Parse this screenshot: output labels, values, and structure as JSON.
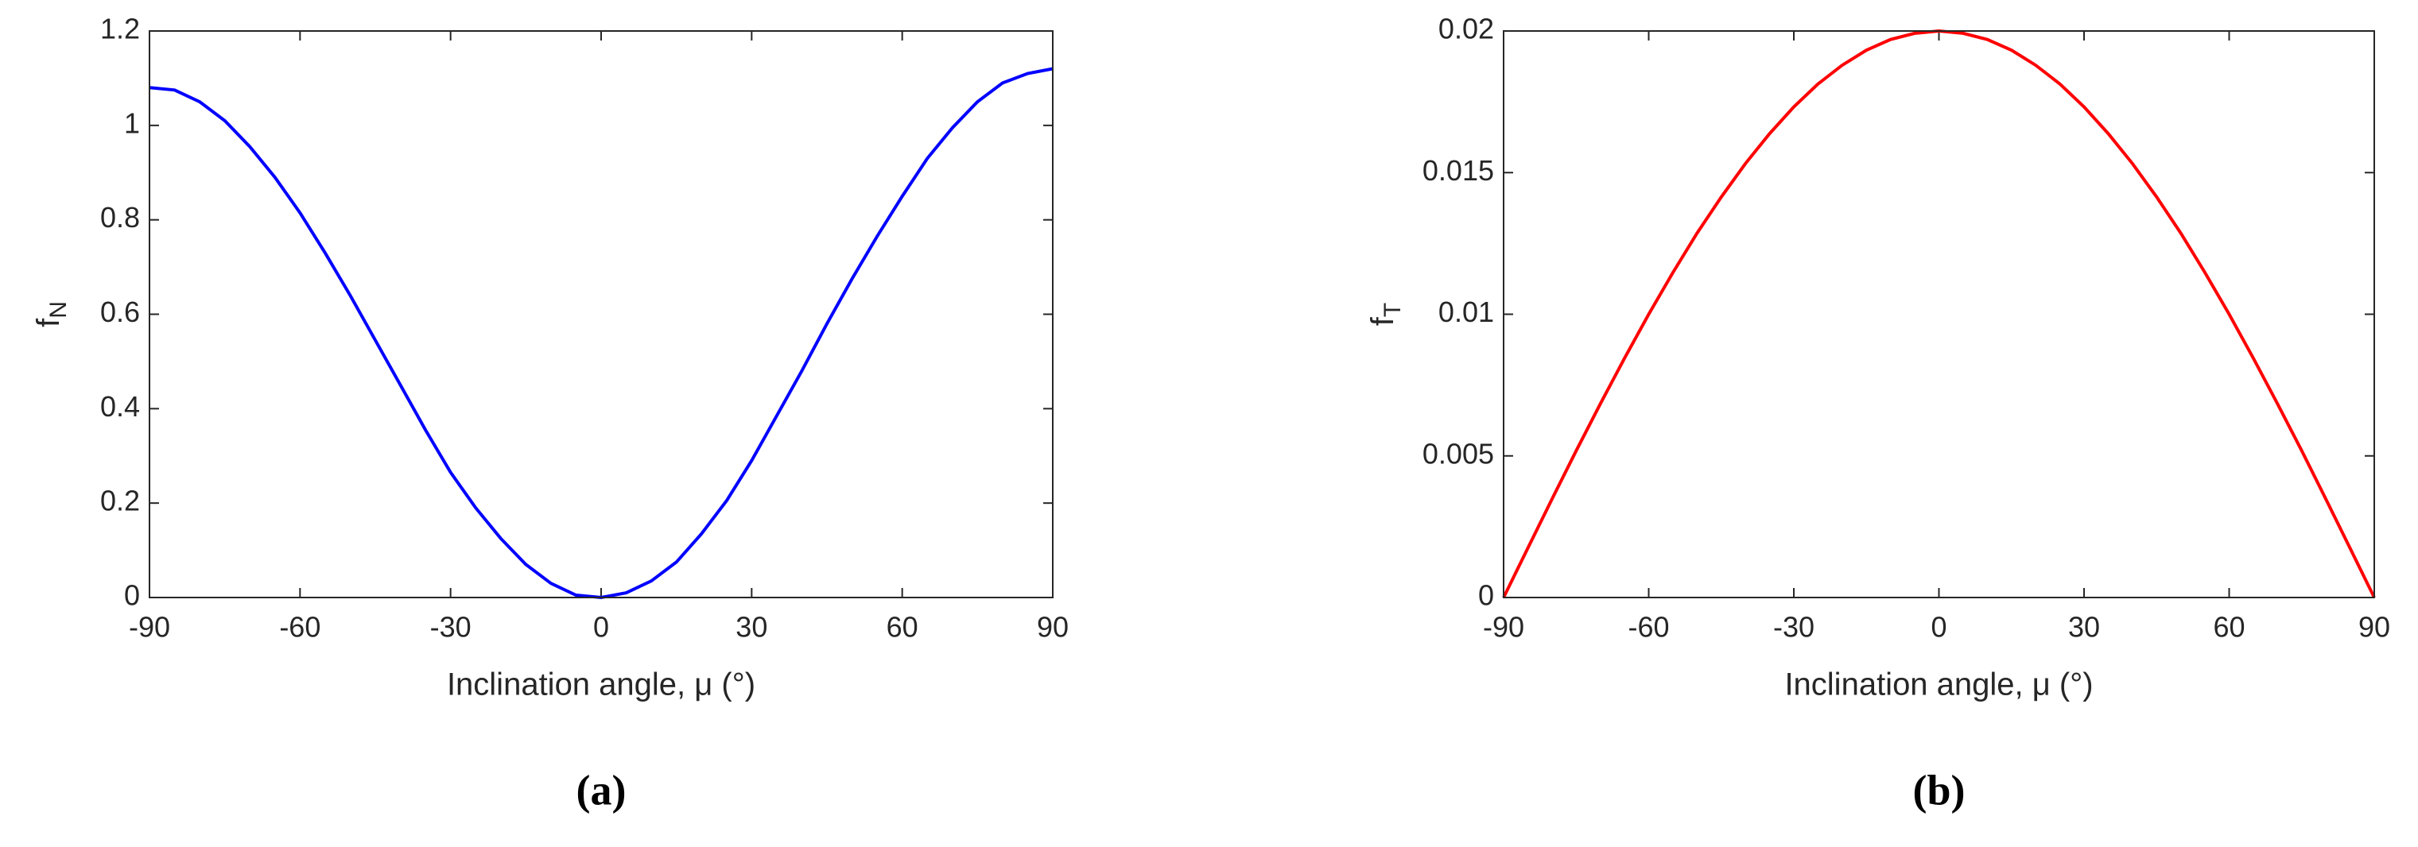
{
  "chart_data": [
    {
      "type": "line",
      "panel_label": "(a)",
      "xlabel": "Inclination angle, μ (°)",
      "ylabel": {
        "base": "f",
        "sub": "N"
      },
      "xlim": [
        -90,
        90
      ],
      "xticks": [
        -90,
        -60,
        -30,
        0,
        30,
        60,
        90
      ],
      "ylim": [
        0,
        1.2
      ],
      "yticks": [
        0,
        0.2,
        0.4,
        0.6,
        0.8,
        1,
        1.2
      ],
      "series": [
        {
          "color": "#0000ff",
          "x": [
            -90,
            -85,
            -80,
            -75,
            -70,
            -65,
            -60,
            -55,
            -50,
            -45,
            -40,
            -35,
            -30,
            -25,
            -20,
            -15,
            -10,
            -5,
            0,
            5,
            10,
            15,
            20,
            25,
            30,
            35,
            40,
            45,
            50,
            55,
            60,
            65,
            70,
            75,
            80,
            85,
            90
          ],
          "values": [
            1.08,
            1.075,
            1.05,
            1.01,
            0.955,
            0.89,
            0.815,
            0.73,
            0.64,
            0.545,
            0.45,
            0.355,
            0.265,
            0.19,
            0.125,
            0.07,
            0.03,
            0.005,
            0,
            0.01,
            0.035,
            0.075,
            0.135,
            0.205,
            0.29,
            0.385,
            0.48,
            0.58,
            0.675,
            0.765,
            0.85,
            0.93,
            0.995,
            1.05,
            1.09,
            1.11,
            1.12
          ]
        }
      ]
    },
    {
      "type": "line",
      "panel_label": "(b)",
      "xlabel": "Inclination angle, μ (°)",
      "ylabel": {
        "base": "f",
        "sub": "T"
      },
      "xlim": [
        -90,
        90
      ],
      "xticks": [
        -90,
        -60,
        -30,
        0,
        30,
        60,
        90
      ],
      "ylim": [
        0,
        0.02
      ],
      "yticks": [
        0,
        0.005,
        0.01,
        0.015,
        0.02
      ],
      "series": [
        {
          "color": "#ff0000",
          "x": [
            -90,
            -85,
            -80,
            -75,
            -70,
            -65,
            -60,
            -55,
            -50,
            -45,
            -40,
            -35,
            -30,
            -25,
            -20,
            -15,
            -10,
            -5,
            0,
            5,
            10,
            15,
            20,
            25,
            30,
            35,
            40,
            45,
            50,
            55,
            60,
            65,
            70,
            75,
            80,
            85,
            90
          ],
          "values": [
            0,
            0.00174,
            0.00347,
            0.00518,
            0.00684,
            0.00845,
            0.01,
            0.01147,
            0.01286,
            0.01414,
            0.01532,
            0.01638,
            0.01732,
            0.01813,
            0.01879,
            0.01932,
            0.0197,
            0.01992,
            0.02,
            0.01992,
            0.0197,
            0.01932,
            0.01879,
            0.01813,
            0.01732,
            0.01638,
            0.01532,
            0.01414,
            0.01286,
            0.01147,
            0.01,
            0.00845,
            0.00684,
            0.00518,
            0.00347,
            0.00174,
            0
          ]
        }
      ]
    }
  ]
}
